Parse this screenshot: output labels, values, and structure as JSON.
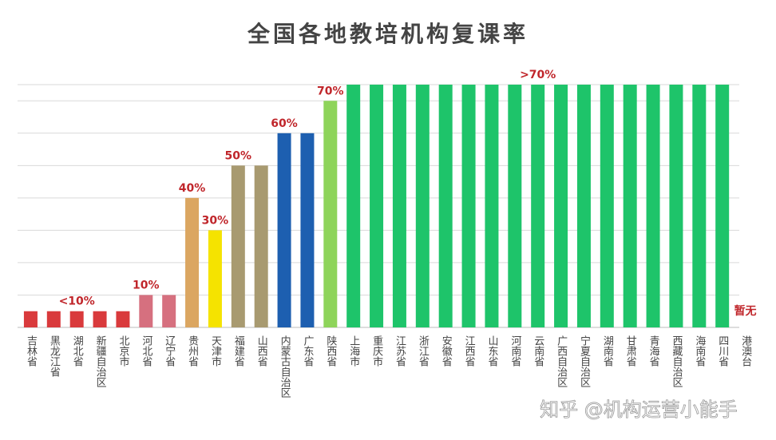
{
  "chart_data": {
    "type": "bar",
    "title": "全国各地教培机构复课率",
    "categories": [
      "吉林省",
      "黑龙江省",
      "湖北省",
      "新疆自治区",
      "北京市",
      "河北省",
      "辽宁省",
      "贵州省",
      "天津市",
      "福建省",
      "山西省",
      "内蒙古自治区",
      "广东省",
      "陕西省",
      "上海市",
      "重庆市",
      "江苏省",
      "浙江省",
      "安徽省",
      "江西省",
      "山东省",
      "河南省",
      "云南省",
      "广西自治区",
      "宁夏自治区",
      "湖南省",
      "甘肃省",
      "青海省",
      "西藏自治区",
      "海南省",
      "四川省",
      "港澳台"
    ],
    "values": [
      5,
      5,
      5,
      5,
      5,
      10,
      10,
      40,
      30,
      50,
      50,
      60,
      60,
      70,
      75,
      75,
      75,
      75,
      75,
      75,
      75,
      75,
      75,
      75,
      75,
      75,
      75,
      75,
      75,
      75,
      75,
      null
    ],
    "value_labels": [
      null,
      null,
      "<10%",
      null,
      null,
      "10%",
      null,
      "40%",
      "30%",
      "50%",
      null,
      "60%",
      null,
      "70%",
      null,
      null,
      null,
      null,
      null,
      null,
      null,
      null,
      ">70%",
      null,
      null,
      null,
      null,
      null,
      null,
      null,
      null,
      "暂无"
    ],
    "colors": [
      "#d93a3c",
      "#d93a3c",
      "#d93a3c",
      "#d93a3c",
      "#d93a3c",
      "#d6707f",
      "#d6707f",
      "#dba661",
      "#f5e300",
      "#a89a70",
      "#a89a70",
      "#1d5fb0",
      "#1d5fb0",
      "#8ed45a",
      "#1ec46a",
      "#1ec46a",
      "#1ec46a",
      "#1ec46a",
      "#1ec46a",
      "#1ec46a",
      "#1ec46a",
      "#1ec46a",
      "#1ec46a",
      "#1ec46a",
      "#1ec46a",
      "#1ec46a",
      "#1ec46a",
      "#1ec46a",
      "#1ec46a",
      "#1ec46a",
      "#1ec46a",
      "#1ec46a"
    ],
    "ylim": [
      0,
      75
    ],
    "yticks": [
      0,
      10,
      20,
      30,
      40,
      50,
      60,
      70,
      75
    ],
    "grid": true,
    "watermark": "知乎 @机构运营小能手"
  }
}
